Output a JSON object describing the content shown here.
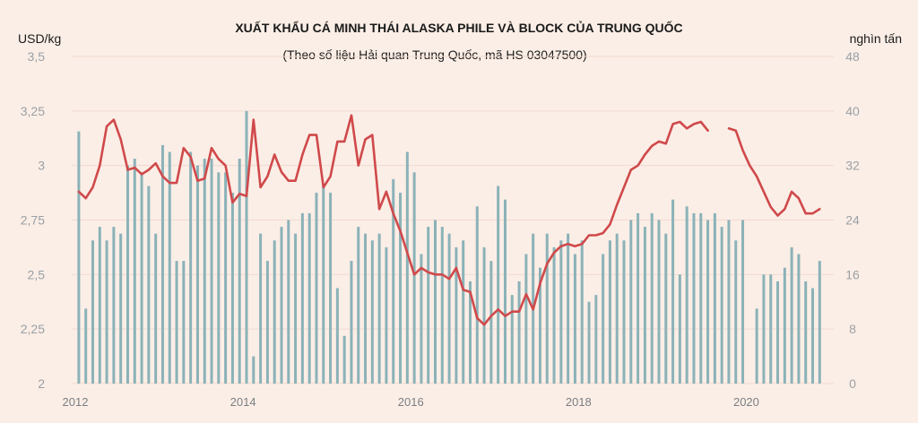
{
  "chart_data": {
    "type": "bar+line",
    "title": "XUẤT KHẨU CÁ MINH THÁI ALASKA PHILE VÀ BLOCK CỦA TRUNG QUỐC",
    "subtitle": "(Theo số liệu Hải quan Trung Quốc, mã HS 03047500)",
    "left_unit": "USD/kg",
    "right_unit": "nghìn tấn",
    "left_axis": {
      "min": 2,
      "max": 3.5,
      "ticks": [
        "2",
        "2,25",
        "2,5",
        "2,75",
        "3",
        "3,25",
        "3,5"
      ]
    },
    "right_axis": {
      "min": 0,
      "max": 48,
      "ticks": [
        "0",
        "8",
        "16",
        "24",
        "32",
        "40",
        "48"
      ]
    },
    "x_axis": {
      "start": 2012,
      "end": 2021,
      "ticks": [
        "2012",
        "2014",
        "2016",
        "2018",
        "2020"
      ]
    },
    "grid": "horizontal",
    "series": [
      {
        "kind": "bar",
        "axis": "right",
        "color": "#8bb2b8",
        "values": [
          37,
          11,
          21,
          23,
          21,
          23,
          22,
          32,
          33,
          31,
          29,
          22,
          35,
          34,
          18,
          18,
          34,
          32,
          33,
          33,
          31,
          31,
          28,
          33,
          40,
          4,
          22,
          18,
          21,
          23,
          24,
          22,
          25,
          25,
          28,
          29,
          28,
          14,
          7,
          18,
          23,
          22,
          21,
          22,
          20,
          30,
          28,
          34,
          31,
          19,
          23,
          24,
          23,
          22,
          20,
          21,
          15,
          26,
          20,
          18,
          29,
          27,
          13,
          15,
          19,
          22,
          17,
          22,
          20,
          21,
          22,
          19,
          21,
          12,
          13,
          19,
          21,
          22,
          21,
          24,
          25,
          23,
          25,
          24,
          22,
          27,
          16,
          26,
          25,
          25,
          24,
          25,
          23,
          24,
          21,
          24,
          0,
          11,
          16,
          16,
          15,
          17,
          20,
          19,
          15,
          14,
          18
        ]
      },
      {
        "kind": "line",
        "axis": "left",
        "color": "#d0494b",
        "values": [
          2.88,
          2.85,
          2.9,
          3.0,
          3.18,
          3.21,
          3.12,
          2.98,
          2.99,
          2.96,
          2.98,
          3.01,
          2.95,
          2.92,
          2.92,
          3.08,
          3.04,
          2.93,
          2.94,
          3.08,
          3.03,
          3.0,
          2.83,
          2.87,
          2.86,
          3.21,
          2.9,
          2.95,
          3.05,
          2.97,
          2.93,
          2.93,
          3.05,
          3.14,
          3.14,
          2.9,
          2.95,
          3.11,
          3.11,
          3.23,
          3.0,
          3.12,
          3.14,
          2.8,
          2.88,
          2.78,
          2.7,
          2.6,
          2.5,
          2.53,
          2.51,
          2.5,
          2.5,
          2.48,
          2.53,
          2.43,
          2.42,
          2.3,
          2.27,
          2.31,
          2.34,
          2.31,
          2.33,
          2.33,
          2.41,
          2.34,
          2.46,
          2.55,
          2.6,
          2.63,
          2.64,
          2.63,
          2.64,
          2.68,
          2.68,
          2.69,
          2.73,
          2.82,
          2.9,
          2.98,
          3.0,
          3.05,
          3.09,
          3.11,
          3.1,
          3.19,
          3.2,
          3.17,
          3.19,
          3.2,
          3.16,
          null,
          null,
          3.17,
          3.16,
          3.07,
          3.0,
          2.95,
          2.88,
          2.81,
          2.77,
          2.8,
          2.88,
          2.85,
          2.78,
          2.78,
          2.8
        ]
      }
    ]
  }
}
